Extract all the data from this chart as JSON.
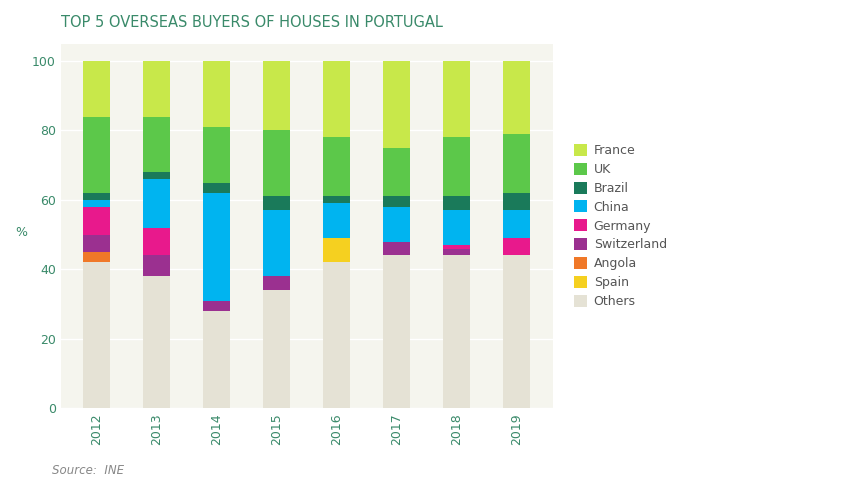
{
  "years": [
    "2012",
    "2013",
    "2014",
    "2015",
    "2016",
    "2017",
    "2018",
    "2019"
  ],
  "categories": [
    "Others",
    "Angola",
    "Switzerland",
    "Germany",
    "Spain",
    "China",
    "Brazil",
    "UK",
    "France"
  ],
  "colors": {
    "Others": "#e5e2d5",
    "Angola": "#f07828",
    "Switzerland": "#9b3090",
    "Germany": "#e8198c",
    "Spain": "#f5d020",
    "China": "#00b4f0",
    "Brazil": "#1a7a5a",
    "UK": "#5cc84a",
    "France": "#c8e84a"
  },
  "data": {
    "Others": [
      42,
      38,
      28,
      34,
      42,
      44,
      44,
      44
    ],
    "Angola": [
      3,
      0,
      0,
      0,
      0,
      0,
      0,
      0
    ],
    "Switzerland": [
      5,
      6,
      3,
      4,
      0,
      4,
      2,
      0
    ],
    "Germany": [
      8,
      8,
      0,
      0,
      0,
      0,
      1,
      5
    ],
    "Spain": [
      0,
      0,
      0,
      0,
      7,
      0,
      0,
      0
    ],
    "China": [
      2,
      14,
      31,
      19,
      10,
      10,
      10,
      8
    ],
    "Brazil": [
      2,
      2,
      3,
      4,
      2,
      3,
      4,
      5
    ],
    "UK": [
      22,
      16,
      16,
      19,
      17,
      14,
      17,
      17
    ],
    "France": [
      16,
      16,
      19,
      20,
      22,
      25,
      22,
      21
    ]
  },
  "title": "TOP 5 OVERSEAS BUYERS OF HOUSES IN PORTUGAL",
  "ylabel": "%",
  "ylim": [
    0,
    105
  ],
  "yticks": [
    0,
    20,
    40,
    60,
    80,
    100
  ],
  "source_text": "Source:  INE",
  "title_color": "#3a8a6a",
  "axis_color": "#3a8a6a",
  "tick_color": "#3a8a6a",
  "background_color": "#ffffff",
  "plot_bg_color": "#f5f5ee",
  "grid_color": "#ffffff",
  "legend_labels": [
    "France",
    "UK",
    "Brazil",
    "China",
    "Germany",
    "Switzerland",
    "Angola",
    "Spain",
    "Others"
  ],
  "legend_colors": [
    "#c8e84a",
    "#5cc84a",
    "#1a7a5a",
    "#00b4f0",
    "#e8198c",
    "#9b3090",
    "#f07828",
    "#f5d020",
    "#e5e2d5"
  ]
}
